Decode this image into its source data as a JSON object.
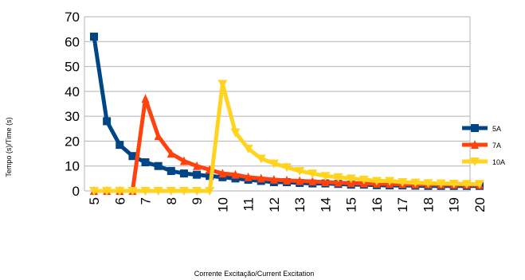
{
  "chart_data": {
    "type": "line",
    "xlabel": "Corrente Excitação/Current Excitation",
    "ylabel": "Tempo (s)/Time (s)",
    "xlim": [
      5,
      20
    ],
    "ylim": [
      0,
      70
    ],
    "yticks": [
      0,
      10,
      20,
      30,
      40,
      50,
      60,
      70
    ],
    "xticks": [
      5,
      6,
      7,
      8,
      9,
      10,
      11,
      12,
      13,
      14,
      15,
      16,
      17,
      18,
      19,
      20
    ],
    "grid": "horizontal",
    "legend_position": "right",
    "series": [
      {
        "name": "5A",
        "color": "#004586",
        "marker": "square",
        "x": [
          5,
          5.5,
          6,
          6.5,
          7,
          7.5,
          8,
          8.5,
          9,
          9.5,
          10,
          10.5,
          11,
          11.5,
          12,
          12.5,
          13,
          13.5,
          14,
          14.5,
          15,
          15.5,
          16,
          16.5,
          17,
          17.5,
          18,
          18.5,
          19,
          19.5,
          20
        ],
        "y": [
          62,
          28,
          18.5,
          14,
          11.5,
          10,
          8,
          7,
          6.5,
          6,
          5.5,
          5,
          4.5,
          4,
          3.5,
          3.5,
          3.2,
          3,
          3,
          2.8,
          2.5,
          2.5,
          2.3,
          2.2,
          2.2,
          2.1,
          2,
          2,
          2,
          2,
          2
        ]
      },
      {
        "name": "7A",
        "color": "#ff420e",
        "marker": "triangle",
        "x": [
          5,
          5.5,
          6,
          6.5,
          7,
          7.5,
          8,
          8.5,
          9,
          9.5,
          10,
          10.5,
          11,
          11.5,
          12,
          12.5,
          13,
          13.5,
          14,
          14.5,
          15,
          15.5,
          16,
          16.5,
          17,
          17.5,
          18,
          18.5,
          19,
          19.5,
          20
        ],
        "y": [
          0,
          0,
          0,
          0,
          37,
          22,
          15,
          12,
          10,
          8.5,
          7,
          6.5,
          5.5,
          5,
          4.5,
          4.2,
          4,
          3.8,
          3.5,
          3.3,
          3.1,
          3,
          2.9,
          2.8,
          2.7,
          2.6,
          2.6,
          2.5,
          2.5,
          2.5,
          2.4
        ]
      },
      {
        "name": "10A",
        "color": "#ffd320",
        "marker": "triangle-down",
        "x": [
          5,
          5.5,
          6,
          6.5,
          7,
          7.5,
          8,
          8.5,
          9,
          9.5,
          10,
          10.5,
          11,
          11.5,
          12,
          12.5,
          13,
          13.5,
          14,
          14.5,
          15,
          15.5,
          16,
          16.5,
          17,
          17.5,
          18,
          18.5,
          19,
          19.5,
          20
        ],
        "y": [
          0,
          0,
          0,
          0,
          0,
          0,
          0,
          0,
          0,
          0,
          43,
          23.5,
          17,
          13,
          11,
          9.5,
          8,
          7,
          6,
          5.5,
          5,
          4.5,
          4,
          4,
          3.5,
          3.3,
          3.1,
          3,
          2.9,
          2.8,
          2.8
        ]
      }
    ]
  }
}
